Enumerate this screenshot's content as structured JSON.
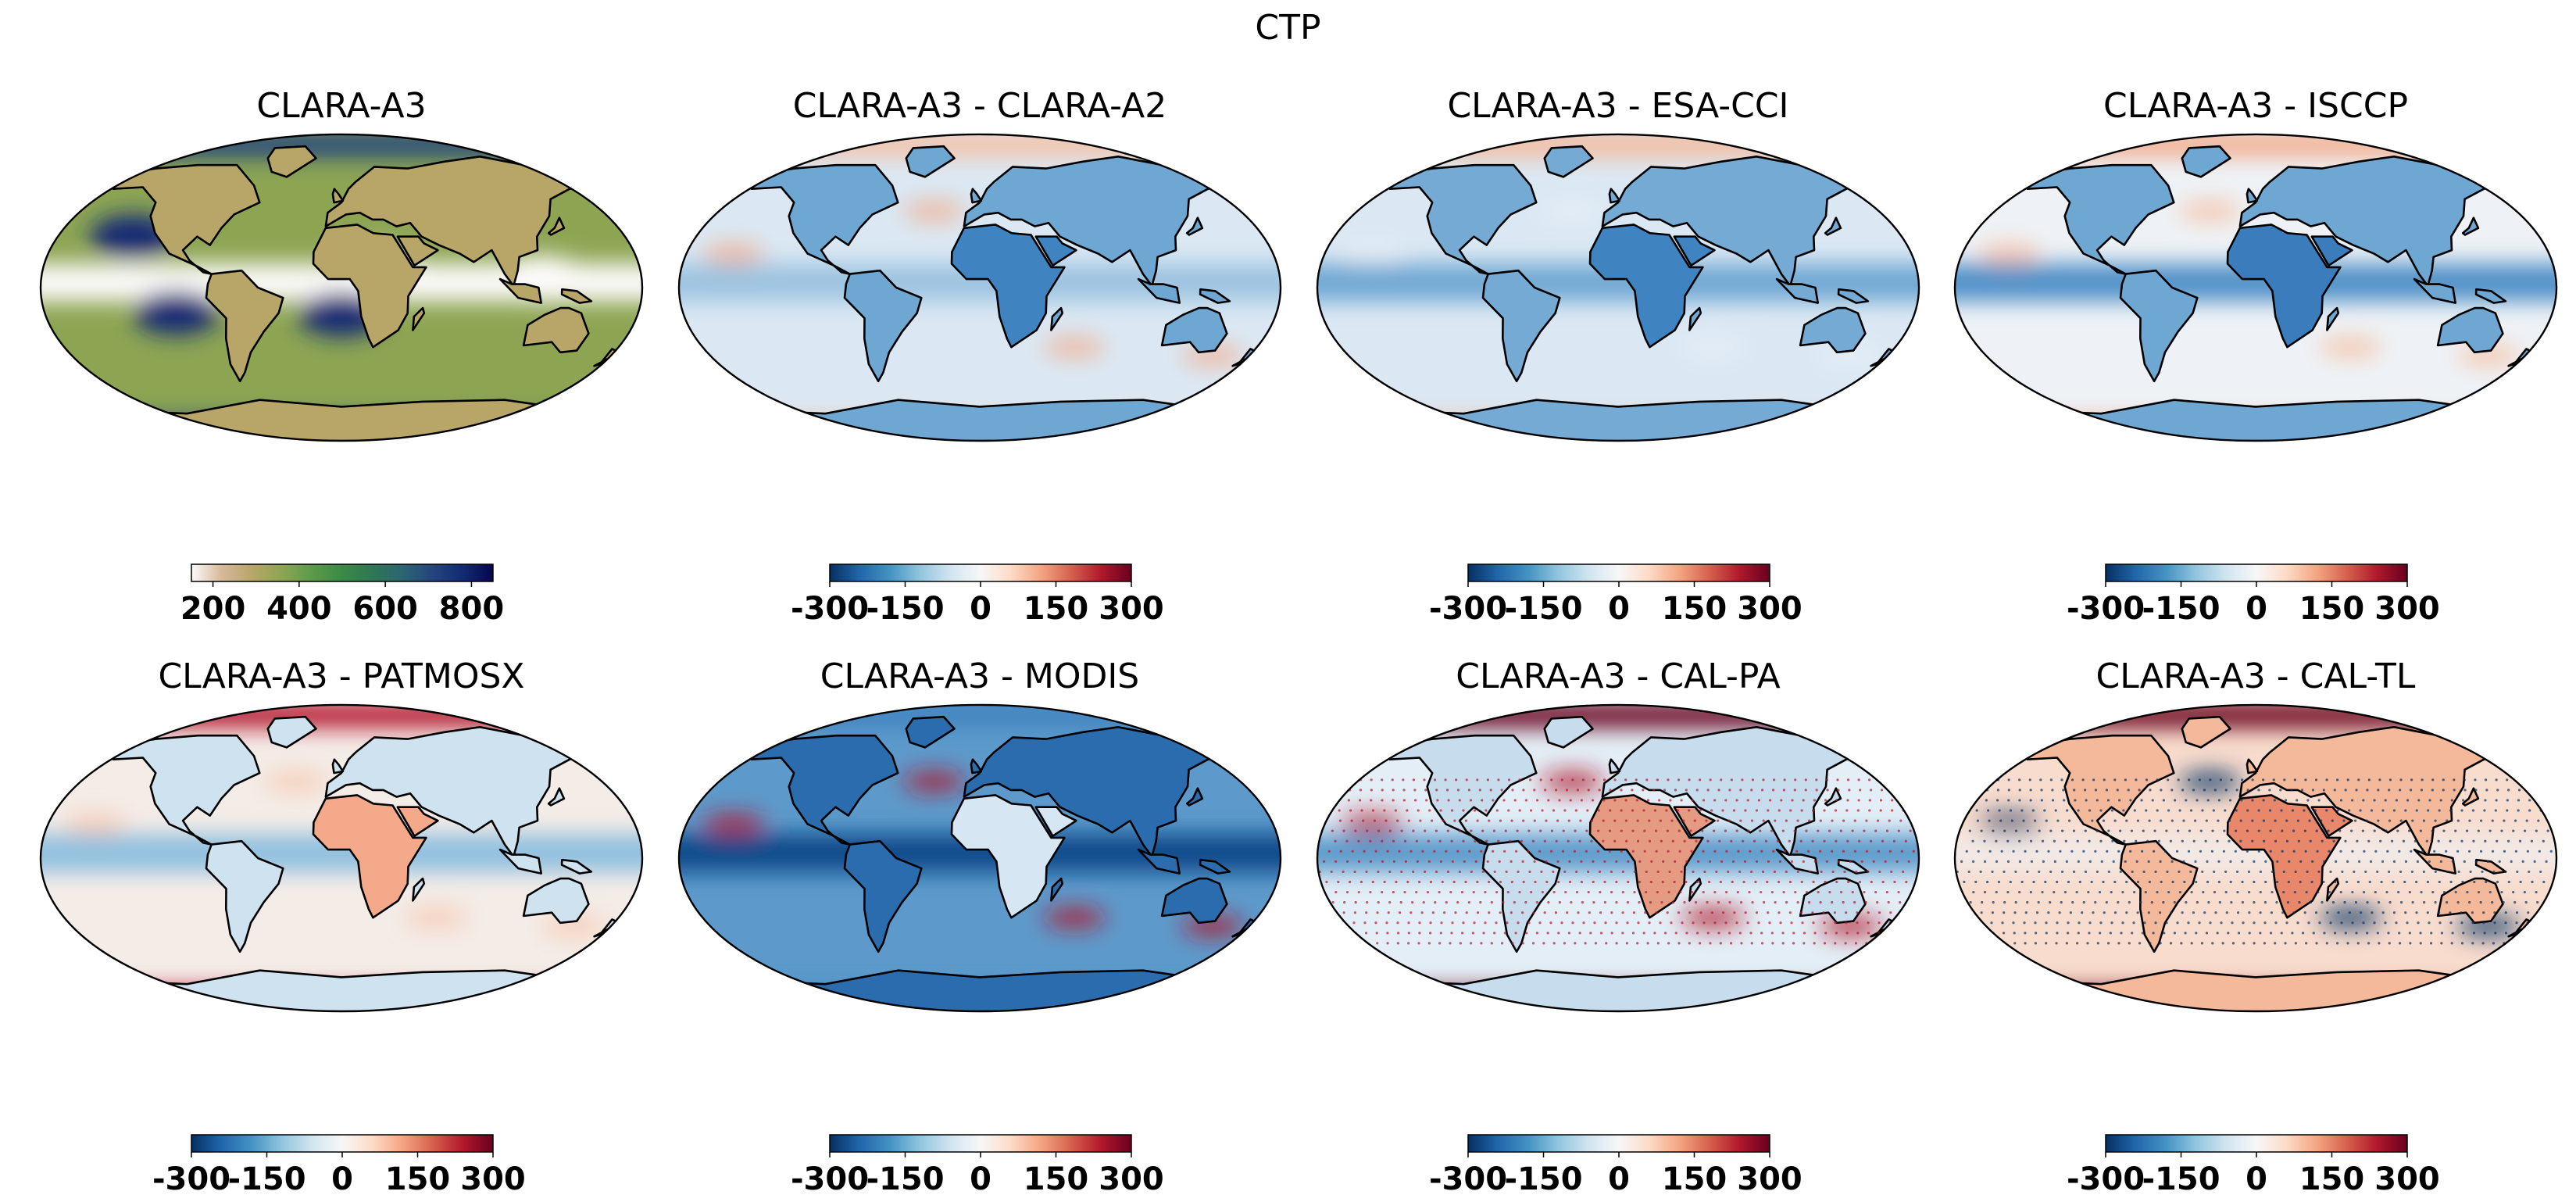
{
  "figure": {
    "title": "CTP"
  },
  "colormaps": {
    "gist_earth_r": [
      "#fdfbfb",
      "#d6b99a",
      "#b8a669",
      "#8da553",
      "#5c9a4b",
      "#3a8a45",
      "#2f7754",
      "#2c6572",
      "#23457f",
      "#132a74",
      "#06054f"
    ],
    "RdBu_r": [
      "#053061",
      "#2166ac",
      "#4393c3",
      "#92c5de",
      "#d1e5f0",
      "#f7f7f7",
      "#fddbc7",
      "#f4a582",
      "#d6604d",
      "#b2182b",
      "#67001f"
    ]
  },
  "panels": [
    {
      "title": "CLARA-A3",
      "colormap": "gist_earth_r",
      "colorbar": {
        "ticks": [
          200,
          400,
          600,
          800
        ],
        "tick_labels": [
          "200",
          "400",
          "600",
          "800"
        ],
        "range": [
          150,
          850
        ]
      },
      "field": {
        "bg": "#8da553",
        "stratus": "#132a74",
        "itcz": "#fdfbfb",
        "land": "#b8a669",
        "polar": "#5c9a4b",
        "poles": "#23457f"
      }
    },
    {
      "title": "CLARA-A3 - CLARA-A2",
      "colormap": "RdBu_r",
      "colorbar": {
        "ticks": [
          -300,
          -150,
          0,
          150,
          300
        ],
        "tick_labels": [
          "-300",
          "-150",
          "0",
          "150",
          "300"
        ],
        "range": [
          -300,
          300
        ]
      },
      "field": {
        "bg": "#dbe8f3",
        "itcz": "#9cc3e0",
        "land": "#6fa7d3",
        "africa": "#3f83c0",
        "poles": "#f4c1a6",
        "spots": "#f1b092"
      }
    },
    {
      "title": "CLARA-A3 - ESA-CCI",
      "colormap": "RdBu_r",
      "colorbar": {
        "ticks": [
          -300,
          -150,
          0,
          150,
          300
        ],
        "tick_labels": [
          "-300",
          "-150",
          "0",
          "150",
          "300"
        ],
        "range": [
          -300,
          300
        ]
      },
      "field": {
        "bg": "#dbe8f3",
        "itcz": "#6fa7d3",
        "land": "#74aad4",
        "africa": "#3f83c0",
        "poles": "#f4b99b",
        "spots": "#e7eff7"
      }
    },
    {
      "title": "CLARA-A3 - ISCCP",
      "colormap": "RdBu_r",
      "colorbar": {
        "ticks": [
          -300,
          -150,
          0,
          150,
          300
        ],
        "tick_labels": [
          "-300",
          "-150",
          "0",
          "150",
          "300"
        ],
        "range": [
          -300,
          300
        ]
      },
      "field": {
        "bg": "#eef2f6",
        "itcz": "#4f90c7",
        "land": "#6fa7d3",
        "africa": "#3a7cbc",
        "poles": "#f3ac8c",
        "spots": "#f6bfa4"
      }
    },
    {
      "title": "CLARA-A3 - PATMOSX",
      "colormap": "RdBu_r",
      "colorbar": {
        "ticks": [
          -300,
          -150,
          0,
          150,
          300
        ],
        "tick_labels": [
          "-300",
          "-150",
          "0",
          "150",
          "300"
        ],
        "range": [
          -300,
          300
        ]
      },
      "field": {
        "bg": "#f4ece7",
        "itcz": "#8fbfdf",
        "land": "#cfe2f0",
        "africa": "#f3a98a",
        "poles": "#b2182b",
        "spots": "#f6c9b2"
      }
    },
    {
      "title": "CLARA-A3 - MODIS",
      "colormap": "RdBu_r",
      "colorbar": {
        "ticks": [
          -300,
          -150,
          0,
          150,
          300
        ],
        "tick_labels": [
          "-300",
          "-150",
          "0",
          "150",
          "300"
        ],
        "range": [
          -300,
          300
        ]
      },
      "field": {
        "bg": "#5d9acb",
        "itcz": "#0b4a8a",
        "land": "#2a6cad",
        "africa": "#d6e6f2",
        "poles": "#3f83c0",
        "spots": "#b2182b"
      }
    },
    {
      "title": "CLARA-A3 - CAL-PA",
      "colormap": "RdBu_r",
      "colorbar": {
        "ticks": [
          -300,
          -150,
          0,
          150,
          300
        ],
        "tick_labels": [
          "-300",
          "-150",
          "0",
          "150",
          "300"
        ],
        "range": [
          -300,
          300
        ]
      },
      "field": {
        "bg": "#e3eef6",
        "itcz": "#5b9acb",
        "land": "#c7ddee",
        "africa": "#e59a82",
        "poles": "#67001f",
        "spots": "#b2182b"
      }
    },
    {
      "title": "CLARA-A3 - CAL-TL",
      "colormap": "RdBu_r",
      "colorbar": {
        "ticks": [
          -300,
          -150,
          0,
          150,
          300
        ],
        "tick_labels": [
          "-300",
          "-150",
          "0",
          "150",
          "300"
        ],
        "range": [
          -300,
          300
        ]
      },
      "field": {
        "bg": "#f8dccd",
        "itcz": "#f2e9e6",
        "land": "#f4b99b",
        "africa": "#e8876a",
        "poles": "#67001f",
        "spots": "#053061"
      }
    }
  ]
}
